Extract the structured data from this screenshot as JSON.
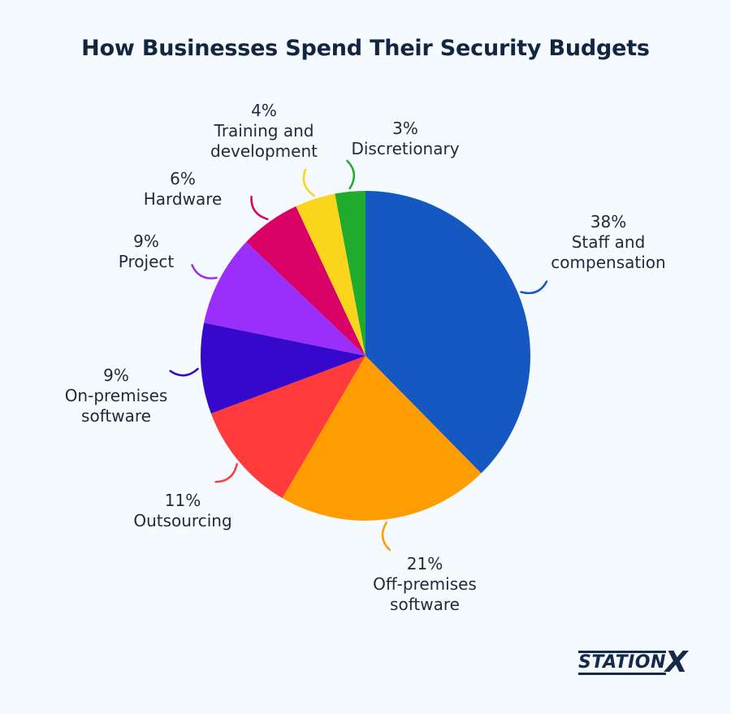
{
  "chart_data": {
    "type": "pie",
    "title": "How Businesses Spend Their Security Budgets",
    "slices": [
      {
        "name": "Staff and compensation",
        "value": 38,
        "label_lines": [
          "38%",
          "Staff and",
          "compensation"
        ],
        "color": "#1558c2"
      },
      {
        "name": "Off-premises software",
        "value": 21,
        "label_lines": [
          "21%",
          "Off-premises",
          "software"
        ],
        "color": "#ff9c00"
      },
      {
        "name": "Outsourcing",
        "value": 11,
        "label_lines": [
          "11%",
          "Outsourcing"
        ],
        "color": "#ff3b3b"
      },
      {
        "name": "On-premises software",
        "value": 9,
        "label_lines": [
          "9%",
          "On-premises",
          "software"
        ],
        "color": "#3508cc"
      },
      {
        "name": "Project",
        "value": 9,
        "label_lines": [
          "9%",
          "Project"
        ],
        "color": "#9a2efb"
      },
      {
        "name": "Hardware",
        "value": 6,
        "label_lines": [
          "6%",
          "Hardware"
        ],
        "color": "#d90066"
      },
      {
        "name": "Training and development",
        "value": 4,
        "label_lines": [
          "4%",
          "Training and",
          "development"
        ],
        "color": "#fbd41c"
      },
      {
        "name": "Discretionary",
        "value": 3,
        "label_lines": [
          "3%",
          "Discretionary"
        ],
        "color": "#21ab2d"
      }
    ]
  },
  "logo": {
    "text": "STATION",
    "mark": "X",
    "color": "#15294d"
  }
}
